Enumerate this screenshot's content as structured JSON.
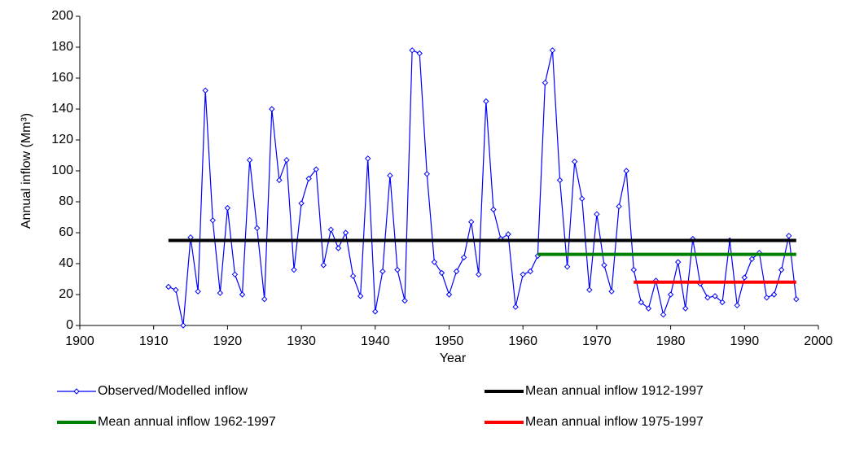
{
  "chart_data": {
    "type": "line",
    "x_label": "Year",
    "y_label": "Annual inflow (Mm³)",
    "xlim": [
      1900,
      2000
    ],
    "xticks": [
      1900,
      1910,
      1920,
      1930,
      1940,
      1950,
      1960,
      1970,
      1980,
      1990,
      2000
    ],
    "ylim": [
      0,
      200
    ],
    "yticks": [
      0,
      20,
      40,
      60,
      80,
      100,
      120,
      140,
      160,
      180,
      200
    ],
    "legend": "bottom",
    "series": [
      {
        "name": "Observed/Modelled inflow",
        "color": "#0000ff",
        "marker": "diamond",
        "x": [
          1912,
          1913,
          1914,
          1915,
          1916,
          1917,
          1918,
          1919,
          1920,
          1921,
          1922,
          1923,
          1924,
          1925,
          1926,
          1927,
          1928,
          1929,
          1930,
          1931,
          1932,
          1933,
          1934,
          1935,
          1936,
          1937,
          1938,
          1939,
          1940,
          1941,
          1942,
          1943,
          1944,
          1945,
          1946,
          1947,
          1948,
          1949,
          1950,
          1951,
          1952,
          1953,
          1954,
          1955,
          1956,
          1957,
          1958,
          1959,
          1960,
          1961,
          1962,
          1963,
          1964,
          1965,
          1966,
          1967,
          1968,
          1969,
          1970,
          1971,
          1972,
          1973,
          1974,
          1975,
          1976,
          1977,
          1978,
          1979,
          1980,
          1981,
          1982,
          1983,
          1984,
          1985,
          1986,
          1987,
          1988,
          1989,
          1990,
          1991,
          1992,
          1993,
          1994,
          1995,
          1996,
          1997
        ],
        "values": [
          25,
          23,
          0,
          57,
          22,
          152,
          68,
          21,
          76,
          33,
          20,
          107,
          63,
          17,
          140,
          94,
          107,
          36,
          79,
          95,
          101,
          39,
          62,
          50,
          60,
          32,
          19,
          108,
          9,
          35,
          97,
          36,
          16,
          178,
          176,
          98,
          41,
          34,
          20,
          35,
          44,
          67,
          33,
          145,
          75,
          56,
          59,
          12,
          33,
          35,
          45,
          157,
          178,
          94,
          38,
          106,
          82,
          23,
          72,
          39,
          22,
          77,
          100,
          36,
          15,
          11,
          29,
          7,
          20,
          41,
          11,
          56,
          27,
          18,
          19,
          15,
          55,
          13,
          31,
          43,
          47,
          18,
          20,
          36,
          58,
          17
        ]
      },
      {
        "name": "Mean annual inflow 1912-1997",
        "color": "#000000",
        "x": [
          1912,
          1997
        ],
        "values": [
          55,
          55
        ]
      },
      {
        "name": "Mean annual inflow 1962-1997",
        "color": "#008000",
        "x": [
          1962,
          1997
        ],
        "values": [
          46,
          46
        ]
      },
      {
        "name": "Mean annual inflow 1975-1997",
        "color": "#ff0000",
        "x": [
          1975,
          1997
        ],
        "values": [
          28,
          28
        ]
      }
    ]
  }
}
